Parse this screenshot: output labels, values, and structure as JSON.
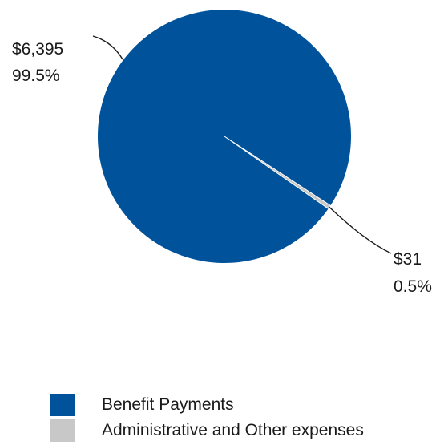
{
  "chart_data": {
    "type": "pie",
    "title": "",
    "slices": [
      {
        "name": "Benefit Payments",
        "value": 6395,
        "value_label": "$6,395",
        "percent_label": "99.5%",
        "color": "#00529b",
        "label_side": "top-left"
      },
      {
        "name": "Administrative and Other expenses",
        "value": 31,
        "value_label": "$31",
        "percent_label": "0.5%",
        "color": "#c8c8c8",
        "label_side": "bottom-right"
      }
    ],
    "legend_position": "bottom"
  }
}
